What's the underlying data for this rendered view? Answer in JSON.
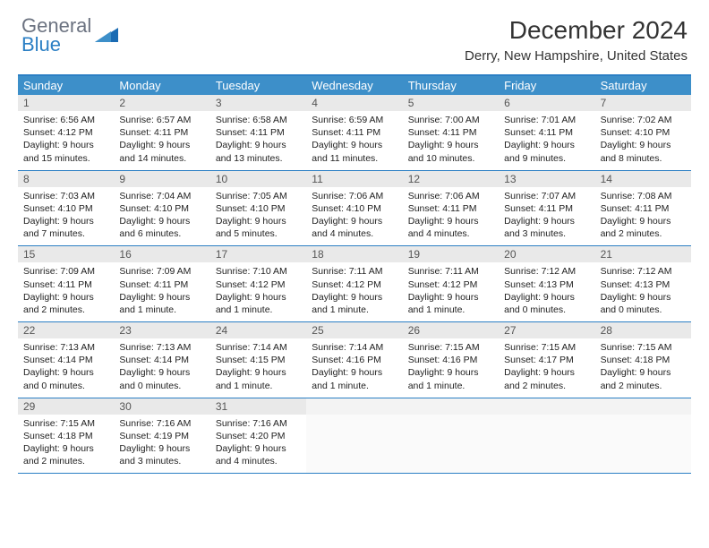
{
  "brand": {
    "general": "General",
    "blue": "Blue"
  },
  "title": "December 2024",
  "location": "Derry, New Hampshire, United States",
  "colors": {
    "header_bg": "#3d8fc9",
    "border": "#2b7fc4",
    "daynum_bg": "#e9e9e9",
    "text": "#222222",
    "title": "#333333"
  },
  "dow": [
    "Sunday",
    "Monday",
    "Tuesday",
    "Wednesday",
    "Thursday",
    "Friday",
    "Saturday"
  ],
  "weeks": [
    [
      {
        "n": "1",
        "sr": "Sunrise: 6:56 AM",
        "ss": "Sunset: 4:12 PM",
        "dl": "Daylight: 9 hours and 15 minutes."
      },
      {
        "n": "2",
        "sr": "Sunrise: 6:57 AM",
        "ss": "Sunset: 4:11 PM",
        "dl": "Daylight: 9 hours and 14 minutes."
      },
      {
        "n": "3",
        "sr": "Sunrise: 6:58 AM",
        "ss": "Sunset: 4:11 PM",
        "dl": "Daylight: 9 hours and 13 minutes."
      },
      {
        "n": "4",
        "sr": "Sunrise: 6:59 AM",
        "ss": "Sunset: 4:11 PM",
        "dl": "Daylight: 9 hours and 11 minutes."
      },
      {
        "n": "5",
        "sr": "Sunrise: 7:00 AM",
        "ss": "Sunset: 4:11 PM",
        "dl": "Daylight: 9 hours and 10 minutes."
      },
      {
        "n": "6",
        "sr": "Sunrise: 7:01 AM",
        "ss": "Sunset: 4:11 PM",
        "dl": "Daylight: 9 hours and 9 minutes."
      },
      {
        "n": "7",
        "sr": "Sunrise: 7:02 AM",
        "ss": "Sunset: 4:10 PM",
        "dl": "Daylight: 9 hours and 8 minutes."
      }
    ],
    [
      {
        "n": "8",
        "sr": "Sunrise: 7:03 AM",
        "ss": "Sunset: 4:10 PM",
        "dl": "Daylight: 9 hours and 7 minutes."
      },
      {
        "n": "9",
        "sr": "Sunrise: 7:04 AM",
        "ss": "Sunset: 4:10 PM",
        "dl": "Daylight: 9 hours and 6 minutes."
      },
      {
        "n": "10",
        "sr": "Sunrise: 7:05 AM",
        "ss": "Sunset: 4:10 PM",
        "dl": "Daylight: 9 hours and 5 minutes."
      },
      {
        "n": "11",
        "sr": "Sunrise: 7:06 AM",
        "ss": "Sunset: 4:10 PM",
        "dl": "Daylight: 9 hours and 4 minutes."
      },
      {
        "n": "12",
        "sr": "Sunrise: 7:06 AM",
        "ss": "Sunset: 4:11 PM",
        "dl": "Daylight: 9 hours and 4 minutes."
      },
      {
        "n": "13",
        "sr": "Sunrise: 7:07 AM",
        "ss": "Sunset: 4:11 PM",
        "dl": "Daylight: 9 hours and 3 minutes."
      },
      {
        "n": "14",
        "sr": "Sunrise: 7:08 AM",
        "ss": "Sunset: 4:11 PM",
        "dl": "Daylight: 9 hours and 2 minutes."
      }
    ],
    [
      {
        "n": "15",
        "sr": "Sunrise: 7:09 AM",
        "ss": "Sunset: 4:11 PM",
        "dl": "Daylight: 9 hours and 2 minutes."
      },
      {
        "n": "16",
        "sr": "Sunrise: 7:09 AM",
        "ss": "Sunset: 4:11 PM",
        "dl": "Daylight: 9 hours and 1 minute."
      },
      {
        "n": "17",
        "sr": "Sunrise: 7:10 AM",
        "ss": "Sunset: 4:12 PM",
        "dl": "Daylight: 9 hours and 1 minute."
      },
      {
        "n": "18",
        "sr": "Sunrise: 7:11 AM",
        "ss": "Sunset: 4:12 PM",
        "dl": "Daylight: 9 hours and 1 minute."
      },
      {
        "n": "19",
        "sr": "Sunrise: 7:11 AM",
        "ss": "Sunset: 4:12 PM",
        "dl": "Daylight: 9 hours and 1 minute."
      },
      {
        "n": "20",
        "sr": "Sunrise: 7:12 AM",
        "ss": "Sunset: 4:13 PM",
        "dl": "Daylight: 9 hours and 0 minutes."
      },
      {
        "n": "21",
        "sr": "Sunrise: 7:12 AM",
        "ss": "Sunset: 4:13 PM",
        "dl": "Daylight: 9 hours and 0 minutes."
      }
    ],
    [
      {
        "n": "22",
        "sr": "Sunrise: 7:13 AM",
        "ss": "Sunset: 4:14 PM",
        "dl": "Daylight: 9 hours and 0 minutes."
      },
      {
        "n": "23",
        "sr": "Sunrise: 7:13 AM",
        "ss": "Sunset: 4:14 PM",
        "dl": "Daylight: 9 hours and 0 minutes."
      },
      {
        "n": "24",
        "sr": "Sunrise: 7:14 AM",
        "ss": "Sunset: 4:15 PM",
        "dl": "Daylight: 9 hours and 1 minute."
      },
      {
        "n": "25",
        "sr": "Sunrise: 7:14 AM",
        "ss": "Sunset: 4:16 PM",
        "dl": "Daylight: 9 hours and 1 minute."
      },
      {
        "n": "26",
        "sr": "Sunrise: 7:15 AM",
        "ss": "Sunset: 4:16 PM",
        "dl": "Daylight: 9 hours and 1 minute."
      },
      {
        "n": "27",
        "sr": "Sunrise: 7:15 AM",
        "ss": "Sunset: 4:17 PM",
        "dl": "Daylight: 9 hours and 2 minutes."
      },
      {
        "n": "28",
        "sr": "Sunrise: 7:15 AM",
        "ss": "Sunset: 4:18 PM",
        "dl": "Daylight: 9 hours and 2 minutes."
      }
    ],
    [
      {
        "n": "29",
        "sr": "Sunrise: 7:15 AM",
        "ss": "Sunset: 4:18 PM",
        "dl": "Daylight: 9 hours and 2 minutes."
      },
      {
        "n": "30",
        "sr": "Sunrise: 7:16 AM",
        "ss": "Sunset: 4:19 PM",
        "dl": "Daylight: 9 hours and 3 minutes."
      },
      {
        "n": "31",
        "sr": "Sunrise: 7:16 AM",
        "ss": "Sunset: 4:20 PM",
        "dl": "Daylight: 9 hours and 4 minutes."
      },
      null,
      null,
      null,
      null
    ]
  ]
}
